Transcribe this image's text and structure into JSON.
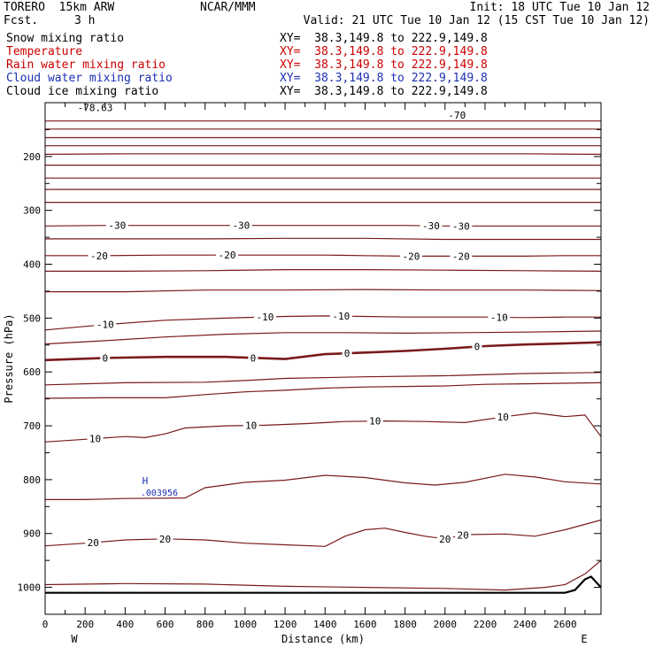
{
  "header": {
    "model": "TORERO  15km ARW",
    "center": "NCAR/MMM",
    "init": "Init: 18 UTC Tue 10 Jan 12",
    "fcst_label": "Fcst.",
    "fcst_value": "3 h",
    "valid": "Valid: 21 UTC Tue 10 Jan 12 (15 CST Tue 10 Jan 12)"
  },
  "fields": [
    {
      "name": "Snow mixing ratio",
      "xy": "XY=  38.3,149.8 to 222.9,149.8",
      "color": "#000000",
      "xy_color": "#000000"
    },
    {
      "name": "Temperature",
      "xy": "XY=  38.3,149.8 to 222.9,149.8",
      "color": "#cc0000",
      "xy_color": "#cc0000"
    },
    {
      "name": "Rain water mixing ratio",
      "xy": "XY=  38.3,149.8 to 222.9,149.8",
      "color": "#cc0000",
      "xy_color": "#cc0000"
    },
    {
      "name": "Cloud water mixing ratio",
      "xy": "XY=  38.3,149.8 to 222.9,149.8",
      "color": "#1c2fb0",
      "xy_color": "#1c2fb0"
    },
    {
      "name": "Cloud ice mixing ratio",
      "xy": "XY=  38.3,149.8 to 222.9,149.8",
      "color": "#000000",
      "xy_color": "#000000"
    }
  ],
  "chart_data": {
    "type": "line",
    "xlabel": "Distance (km)",
    "ylabel": "Pressure (hPa)",
    "xlim": [
      0,
      2780
    ],
    "ylim": [
      1050,
      100
    ],
    "x_ticks": [
      0,
      200,
      400,
      600,
      800,
      1000,
      1200,
      1400,
      1600,
      1800,
      2000,
      2200,
      2400,
      2600
    ],
    "x_tick_labels": [
      "0",
      "200",
      "400",
      "600",
      "800",
      "1000",
      "1200",
      "1400",
      "1600",
      "1800",
      "2000",
      "2200",
      "2400",
      "2600"
    ],
    "y_ticks": [
      200,
      300,
      400,
      500,
      600,
      700,
      800,
      900,
      1000
    ],
    "y_tick_labels": [
      "200",
      "300",
      "400",
      "500",
      "600",
      "700",
      "800",
      "900",
      "1000"
    ],
    "left_end": "W",
    "right_end": "E",
    "isotherm_color": "#7a1a1a",
    "terrain_color": "#000000",
    "marker_color": "#1c2fb0",
    "isotherms": [
      {
        "value": 0,
        "bold": true,
        "x": [
          0,
          300,
          600,
          900,
          1200,
          1400,
          1600,
          1800,
          2000,
          2200,
          2400,
          2600,
          2780
        ],
        "p": [
          578,
          574,
          572,
          572,
          576,
          567,
          564,
          561,
          557,
          552,
          549,
          547,
          545
        ],
        "labels": [
          {
            "text": "0",
            "x": 300
          },
          {
            "text": "0",
            "x": 1040
          },
          {
            "text": "0",
            "x": 1510
          },
          {
            "text": "0",
            "x": 2160
          }
        ]
      },
      {
        "value": -10,
        "bold": false,
        "x": [
          0,
          300,
          600,
          900,
          1200,
          1400,
          1600,
          1800,
          2000,
          2200,
          2400,
          2600,
          2780
        ],
        "p": [
          522,
          512,
          504,
          500,
          497,
          496,
          497,
          498,
          498,
          498,
          499,
          498,
          498
        ],
        "labels": [
          {
            "text": "-10",
            "x": 300
          },
          {
            "text": "-10",
            "x": 1100
          },
          {
            "text": "-10",
            "x": 1480
          },
          {
            "text": "-10",
            "x": 2270
          }
        ]
      },
      {
        "value": -20,
        "bold": false,
        "x": [
          0,
          300,
          600,
          900,
          1200,
          1400,
          1600,
          1800,
          2000,
          2200,
          2400,
          2600,
          2780
        ],
        "p": [
          384,
          384,
          383,
          383,
          383,
          383,
          384,
          385,
          385,
          385,
          385,
          384,
          384
        ],
        "labels": [
          {
            "text": "-20",
            "x": 270
          },
          {
            "text": "-20",
            "x": 910
          },
          {
            "text": "-20",
            "x": 1830
          },
          {
            "text": "-20",
            "x": 2080
          }
        ]
      },
      {
        "value": -30,
        "bold": false,
        "x": [
          0,
          300,
          600,
          900,
          1200,
          1400,
          1600,
          1800,
          2000,
          2200,
          2400,
          2600,
          2780
        ],
        "p": [
          329,
          328,
          328,
          328,
          328,
          328,
          328,
          328,
          329,
          329,
          329,
          329,
          329
        ],
        "labels": [
          {
            "text": "-30",
            "x": 360
          },
          {
            "text": "-30",
            "x": 980
          },
          {
            "text": "-30",
            "x": 1930
          },
          {
            "text": "-30",
            "x": 2080
          }
        ]
      },
      {
        "value": 10,
        "bold": false,
        "x": [
          0,
          200,
          400,
          500,
          600,
          700,
          900,
          1100,
          1300,
          1500,
          1700,
          1900,
          2100,
          2300,
          2450,
          2600,
          2700,
          2780
        ],
        "p": [
          730,
          725,
          720,
          722,
          715,
          704,
          700,
          699,
          696,
          692,
          691,
          692,
          694,
          683,
          676,
          683,
          680,
          720
        ],
        "labels": [
          {
            "text": "10",
            "x": 250
          },
          {
            "text": "10",
            "x": 1030
          },
          {
            "text": "10",
            "x": 1650
          },
          {
            "text": "10",
            "x": 2290
          }
        ]
      },
      {
        "value": 20,
        "bold": false,
        "x": [
          0,
          200,
          400,
          600,
          800,
          1000,
          1200,
          1400,
          1500,
          1600,
          1700,
          1800,
          1900,
          2000,
          2100,
          2300,
          2450,
          2600,
          2780
        ],
        "p": [
          923,
          918,
          912,
          910,
          912,
          918,
          921,
          924,
          905,
          893,
          890,
          898,
          905,
          910,
          902,
          901,
          905,
          893,
          875
        ],
        "labels": [
          {
            "text": "20",
            "x": 240
          },
          {
            "text": "20",
            "x": 600
          },
          {
            "text": "20",
            "x": 2000
          },
          {
            "text": "20",
            "x": 2090
          }
        ]
      }
    ],
    "unlabeled_contours": [
      {
        "x": [
          0,
          400,
          800,
          1200,
          1600,
          2000,
          2400,
          2780
        ],
        "p": [
          134,
          134,
          134,
          134,
          134,
          134,
          134,
          134
        ]
      },
      {
        "x": [
          0,
          400,
          800,
          1200,
          1600,
          2000,
          2400,
          2780
        ],
        "p": [
          149,
          149,
          149,
          149,
          149,
          149,
          149,
          149
        ]
      },
      {
        "x": [
          0,
          400,
          800,
          1200,
          1600,
          2000,
          2400,
          2780
        ],
        "p": [
          165,
          165,
          165,
          165,
          165,
          165,
          165,
          165
        ]
      },
      {
        "x": [
          0,
          400,
          800,
          1200,
          1600,
          2000,
          2400,
          2780
        ],
        "p": [
          180,
          180,
          180,
          180,
          180,
          180,
          180,
          180
        ]
      },
      {
        "x": [
          0,
          400,
          800,
          1200,
          1600,
          2000,
          2400,
          2780
        ],
        "p": [
          196,
          195,
          195,
          195,
          195,
          195,
          195,
          196
        ]
      },
      {
        "x": [
          0,
          400,
          800,
          1200,
          1600,
          2000,
          2400,
          2780
        ],
        "p": [
          216,
          216,
          216,
          216,
          216,
          216,
          216,
          216
        ]
      },
      {
        "x": [
          0,
          400,
          800,
          1200,
          1600,
          2000,
          2400,
          2780
        ],
        "p": [
          240,
          240,
          240,
          240,
          240,
          240,
          240,
          240
        ]
      },
      {
        "x": [
          0,
          400,
          800,
          1200,
          1600,
          2000,
          2400,
          2780
        ],
        "p": [
          261,
          261,
          261,
          261,
          261,
          261,
          261,
          261
        ]
      },
      {
        "x": [
          0,
          400,
          800,
          1200,
          1600,
          2000,
          2400,
          2780
        ],
        "p": [
          285,
          285,
          285,
          285,
          285,
          285,
          285,
          285
        ]
      },
      {
        "x": [
          0,
          400,
          800,
          1200,
          1600,
          2000,
          2400,
          2780
        ],
        "p": [
          353,
          353,
          353,
          352,
          352,
          354,
          354,
          354
        ]
      },
      {
        "x": [
          0,
          400,
          800,
          1200,
          1600,
          2000,
          2400,
          2780
        ],
        "p": [
          413,
          413,
          412,
          410,
          410,
          411,
          412,
          413
        ]
      },
      {
        "x": [
          0,
          400,
          800,
          1200,
          1600,
          2000,
          2400,
          2780
        ],
        "p": [
          451,
          451,
          448,
          448,
          447,
          448,
          448,
          449
        ]
      },
      {
        "x": [
          0,
          300,
          600,
          900,
          1200,
          1500,
          1800,
          2100,
          2400,
          2780
        ],
        "p": [
          548,
          542,
          535,
          530,
          527,
          527,
          528,
          527,
          526,
          524
        ]
      },
      {
        "x": [
          0,
          400,
          800,
          1000,
          1200,
          1600,
          2000,
          2400,
          2780
        ],
        "p": [
          624,
          620,
          619,
          616,
          612,
          609,
          607,
          603,
          601
        ]
      },
      {
        "x": [
          0,
          300,
          600,
          800,
          1000,
          1200,
          1400,
          1600,
          1800,
          2000,
          2200,
          2400,
          2780
        ],
        "p": [
          649,
          648,
          648,
          642,
          637,
          634,
          630,
          628,
          627,
          626,
          623,
          622,
          620
        ]
      },
      {
        "x": [
          0,
          200,
          400,
          700,
          800,
          1000,
          1200,
          1400,
          1600,
          1800,
          1950,
          2100,
          2300,
          2450,
          2600,
          2780
        ],
        "p": [
          837,
          837,
          835,
          834,
          815,
          805,
          801,
          792,
          796,
          806,
          810,
          805,
          790,
          795,
          804,
          808
        ]
      },
      {
        "x": [
          0,
          400,
          800,
          1200,
          1600,
          2000,
          2300,
          2500,
          2600,
          2700,
          2780
        ],
        "p": [
          995,
          993,
          994,
          998,
          1000,
          1002,
          1005,
          1000,
          995,
          975,
          950
        ]
      }
    ],
    "terrain": {
      "x": [
        0,
        400,
        800,
        1200,
        1600,
        2000,
        2400,
        2600,
        2650,
        2700,
        2730,
        2780
      ],
      "p": [
        1010,
        1010,
        1010,
        1010,
        1010,
        1010,
        1010,
        1010,
        1005,
        985,
        980,
        1000
      ]
    },
    "marker": {
      "label": "H",
      "value": ".003956",
      "x": 500,
      "p": 808
    },
    "top_label": {
      "text": "-78.63",
      "x": 250,
      "p": 109
    },
    "top_contour_label": {
      "text": "-70",
      "x": 2060,
      "p": 123
    }
  }
}
